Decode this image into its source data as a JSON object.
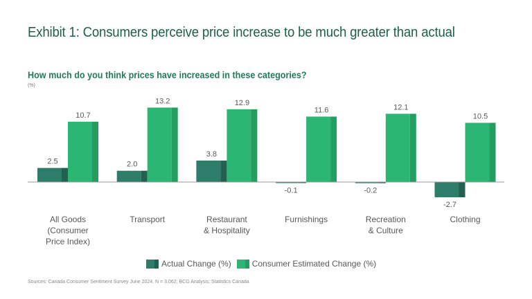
{
  "header": {
    "title": "Exhibit 1: Consumers perceive price increase to be much greater than actual",
    "subtitle": "How much do you think prices have increased in these categories?",
    "unit": "(%)"
  },
  "colors": {
    "actual_front": "#2e7d6a",
    "actual_side": "#23604f",
    "estimated_front": "#2bb673",
    "estimated_side": "#239e60",
    "baseline": "#9a9a9a"
  },
  "chart_data": {
    "type": "bar",
    "title": "How much do you think prices have increased in these categories?",
    "ylabel": "(%)",
    "xlabel": "",
    "ylim": [
      -3,
      14
    ],
    "grid": false,
    "legend_position": "bottom",
    "categories": [
      [
        "All Goods",
        "(Consumer",
        "Price Index)"
      ],
      [
        "Transport"
      ],
      [
        "Restaurant",
        "& Hospitality"
      ],
      [
        "Furnishings"
      ],
      [
        "Recreation",
        "& Culture"
      ],
      [
        "Clothing"
      ]
    ],
    "series": [
      {
        "name": "Actual Change (%)",
        "values": [
          2.5,
          2.0,
          3.8,
          -0.1,
          -0.2,
          -2.7
        ],
        "labels": [
          "2.5",
          "2.0",
          "3.8",
          "-0.1",
          "-0.2",
          "-2.7"
        ]
      },
      {
        "name": "Consumer Estimated Change (%)",
        "values": [
          10.7,
          13.2,
          12.9,
          11.6,
          12.1,
          10.5
        ],
        "labels": [
          "10.7",
          "13.2",
          "12.9",
          "11.6",
          "12.1",
          "10.5"
        ]
      }
    ]
  },
  "legend": {
    "actual": "Actual Change (%)",
    "estimated": "Consumer Estimated Change (%)"
  },
  "footer": {
    "source": "Sources: Canada Consumer Sentiment Survey June 2024, N = 3,062; BCG Analysis; Statistics Canada"
  }
}
